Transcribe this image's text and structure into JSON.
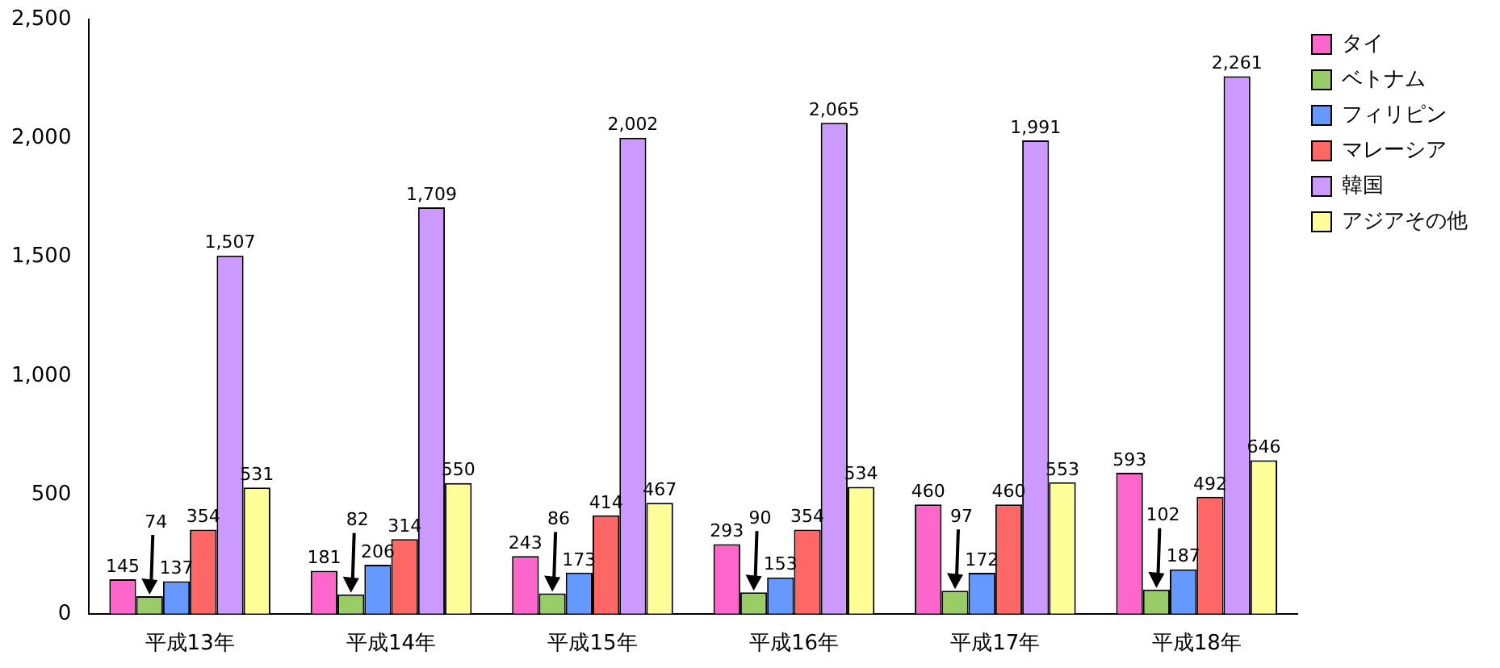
{
  "chart_data": {
    "type": "bar",
    "categories": [
      "平成13年",
      "平成14年",
      "平成15年",
      "平成16年",
      "平成17年",
      "平成18年"
    ],
    "series": [
      {
        "name": "タイ",
        "color": "#ff66cc",
        "values": [
          145,
          181,
          243,
          293,
          460,
          593
        ],
        "value_labels": [
          "145",
          "181",
          "243",
          "293",
          "460",
          "593"
        ]
      },
      {
        "name": "ベトナム",
        "color": "#99cc66",
        "values": [
          74,
          82,
          86,
          90,
          97,
          102
        ],
        "value_labels": [
          "74",
          "82",
          "86",
          "90",
          "97",
          "102"
        ]
      },
      {
        "name": "フィリピン",
        "color": "#6699ff",
        "values": [
          137,
          206,
          173,
          153,
          172,
          187
        ],
        "value_labels": [
          "137",
          "206",
          "173",
          "153",
          "172",
          "187"
        ]
      },
      {
        "name": "マレーシア",
        "color": "#ff6666",
        "values": [
          354,
          314,
          414,
          354,
          460,
          492
        ],
        "value_labels": [
          "354",
          "314",
          "414",
          "354",
          "460",
          "492"
        ]
      },
      {
        "name": "韓国",
        "color": "#cc99ff",
        "values": [
          1507,
          1709,
          2002,
          2065,
          1991,
          2261
        ],
        "value_labels": [
          "1,507",
          "1,709",
          "2,002",
          "2,065",
          "1,991",
          "2,261"
        ]
      },
      {
        "name": "アジアその他",
        "color": "#ffff99",
        "values": [
          531,
          550,
          467,
          534,
          553,
          646
        ],
        "value_labels": [
          "531",
          "550",
          "467",
          "534",
          "553",
          "646"
        ]
      }
    ],
    "ylim": [
      0,
      2500
    ],
    "yticks": [
      {
        "value": 0,
        "label": "0"
      },
      {
        "value": 500,
        "label": "500"
      },
      {
        "value": 1000,
        "label": "1,000"
      },
      {
        "value": 1500,
        "label": "1,500"
      },
      {
        "value": 2000,
        "label": "2,000"
      },
      {
        "value": 2500,
        "label": "2,500"
      }
    ],
    "grid": false,
    "legend": "right"
  }
}
